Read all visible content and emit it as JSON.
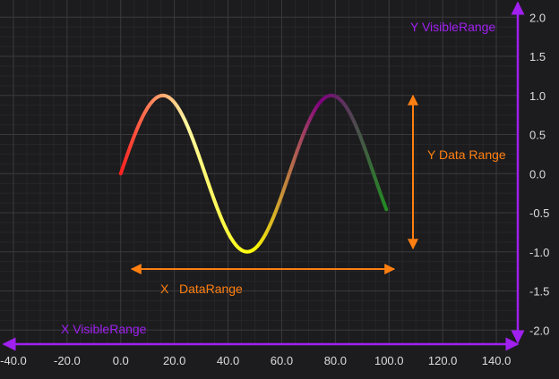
{
  "chart_data": {
    "type": "line",
    "xlim": [
      -45.0,
      148.0
    ],
    "ylim": [
      -2.18,
      2.22
    ],
    "x_ticks": [
      -40.0,
      -20.0,
      0.0,
      20.0,
      40.0,
      60.0,
      80.0,
      100.0,
      120.0,
      140.0
    ],
    "y_ticks": [
      2.0,
      1.5,
      1.0,
      0.5,
      0.0,
      -0.5,
      -1.0,
      -1.5,
      -2.0
    ],
    "x_tick_labels": [
      "-40.0",
      "-20.0",
      "0.0",
      "20.0",
      "40.0",
      "60.0",
      "80.0",
      "100.0",
      "120.0",
      "140.0"
    ],
    "y_tick_labels": [
      "2.0",
      "1.5",
      "1.0",
      "0.5",
      "0.0",
      "-0.5",
      "-1.0",
      "-1.5",
      "-2.0"
    ],
    "y_axis_position": "right",
    "grid": true,
    "series": [
      {
        "function": "sin(x / 10)",
        "x_start": 0,
        "x_end": 99,
        "point_count": 100,
        "gradient_colors": [
          "#ff2020",
          "#fff8a0",
          "#ffff00",
          "#800080",
          "#228b22"
        ]
      }
    ],
    "annotations": {
      "x_visible_range": "X VisibleRange",
      "y_visible_range": "Y VisibleRange",
      "x_data_range": "X   DataRange",
      "y_data_range": "Y Data Range"
    }
  },
  "colors": {
    "background": "#1c1c1e",
    "grid_major": "#3a3a3c",
    "grid_minor": "#262628",
    "tick_label": "#dddddd",
    "visible_range": "#a020f0",
    "data_range": "#ff7f11"
  }
}
